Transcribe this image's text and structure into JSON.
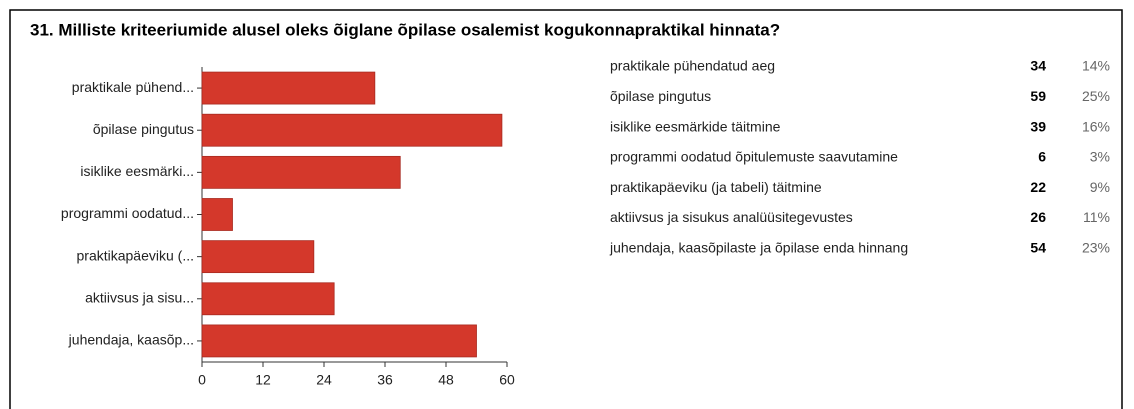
{
  "chart_data": {
    "type": "bar",
    "orientation": "horizontal",
    "title": "31. Milliste kriteeriumide alusel oleks õiglane õpilase osalemist kogukonnapraktikal hinnata?",
    "categories": [
      "praktikale pühend...",
      "õpilase pingutus",
      "isiklike eesmärki...",
      "programmi oodatud...",
      "praktikapäeviku (...",
      "aktiivsus ja sisu...",
      "juhendaja, kaasõp..."
    ],
    "values": [
      34,
      59,
      39,
      6,
      22,
      26,
      54
    ],
    "color": "#d4382b",
    "xlim": [
      0,
      60
    ],
    "xticks": [
      0,
      12,
      24,
      36,
      48,
      60
    ],
    "table": {
      "labels": [
        "praktikale pühendatud aeg",
        "õpilase pingutus",
        "isiklike eesmärkide täitmine",
        "programmi oodatud õpitulemuste saavutamine",
        "praktikapäeviku (ja tabeli) täitmine",
        "aktiivsus ja sisukus analüüsitegevustes",
        "juhendaja, kaasõpilaste ja õpilase enda hinnang"
      ],
      "percents": [
        "14%",
        "25%",
        "16%",
        "3%",
        "9%",
        "11%",
        "23%"
      ]
    }
  }
}
